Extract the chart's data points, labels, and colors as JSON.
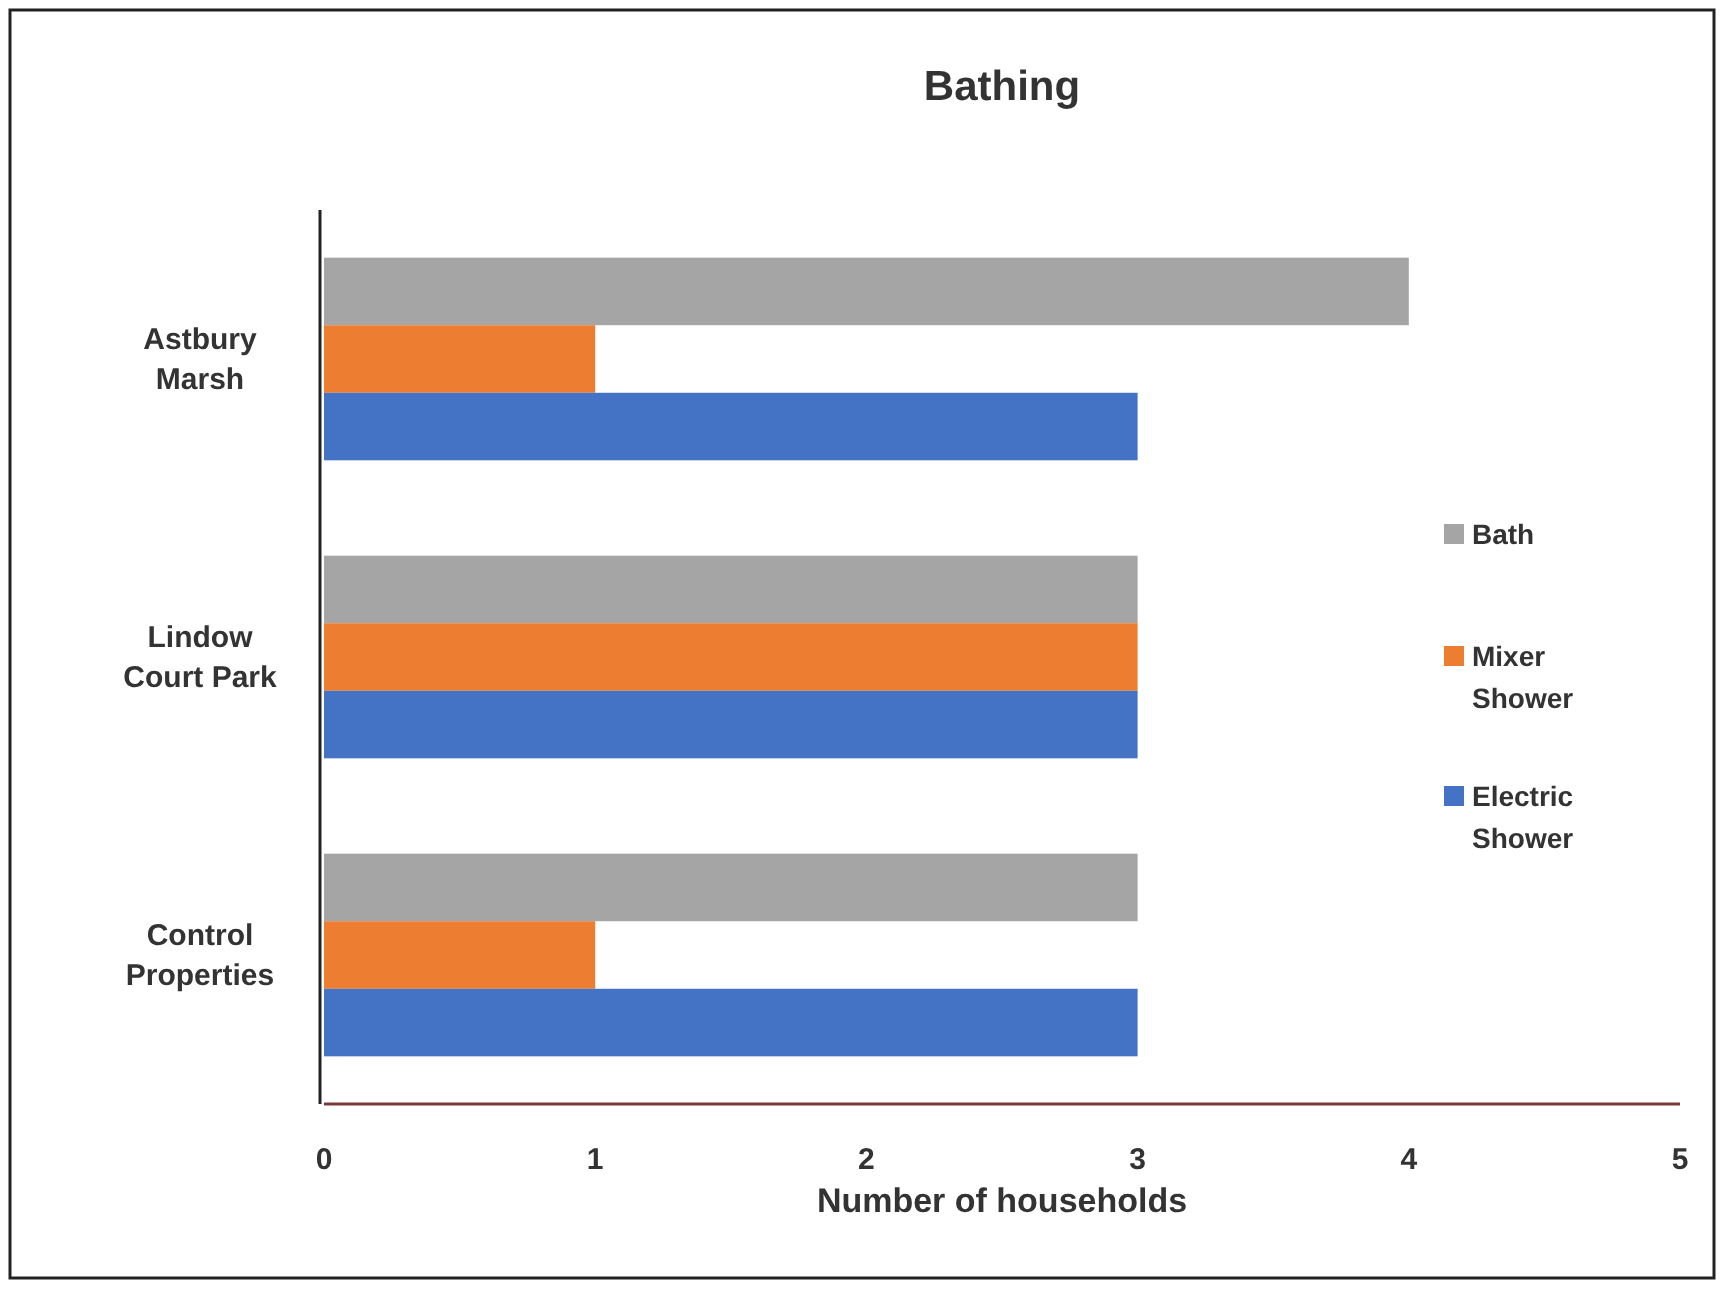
{
  "chart_data": {
    "type": "bar",
    "orientation": "horizontal",
    "title": "Bathing",
    "xlabel": "Number of households",
    "categories": [
      "Astbury Marsh",
      "Lindow Court Park",
      "Control Properties"
    ],
    "series": [
      {
        "name": "Bath",
        "color": "#a5a5a5",
        "values": [
          4,
          3,
          3
        ]
      },
      {
        "name": "Mixer Shower",
        "color": "#ed7d31",
        "values": [
          1,
          3,
          1
        ]
      },
      {
        "name": "Electric Shower",
        "color": "#4472c4",
        "values": [
          3,
          3,
          3
        ]
      }
    ],
    "xlim": [
      0,
      5
    ],
    "xticks": [
      0,
      1,
      2,
      3,
      4,
      5
    ],
    "grid": false,
    "legend": "right"
  }
}
